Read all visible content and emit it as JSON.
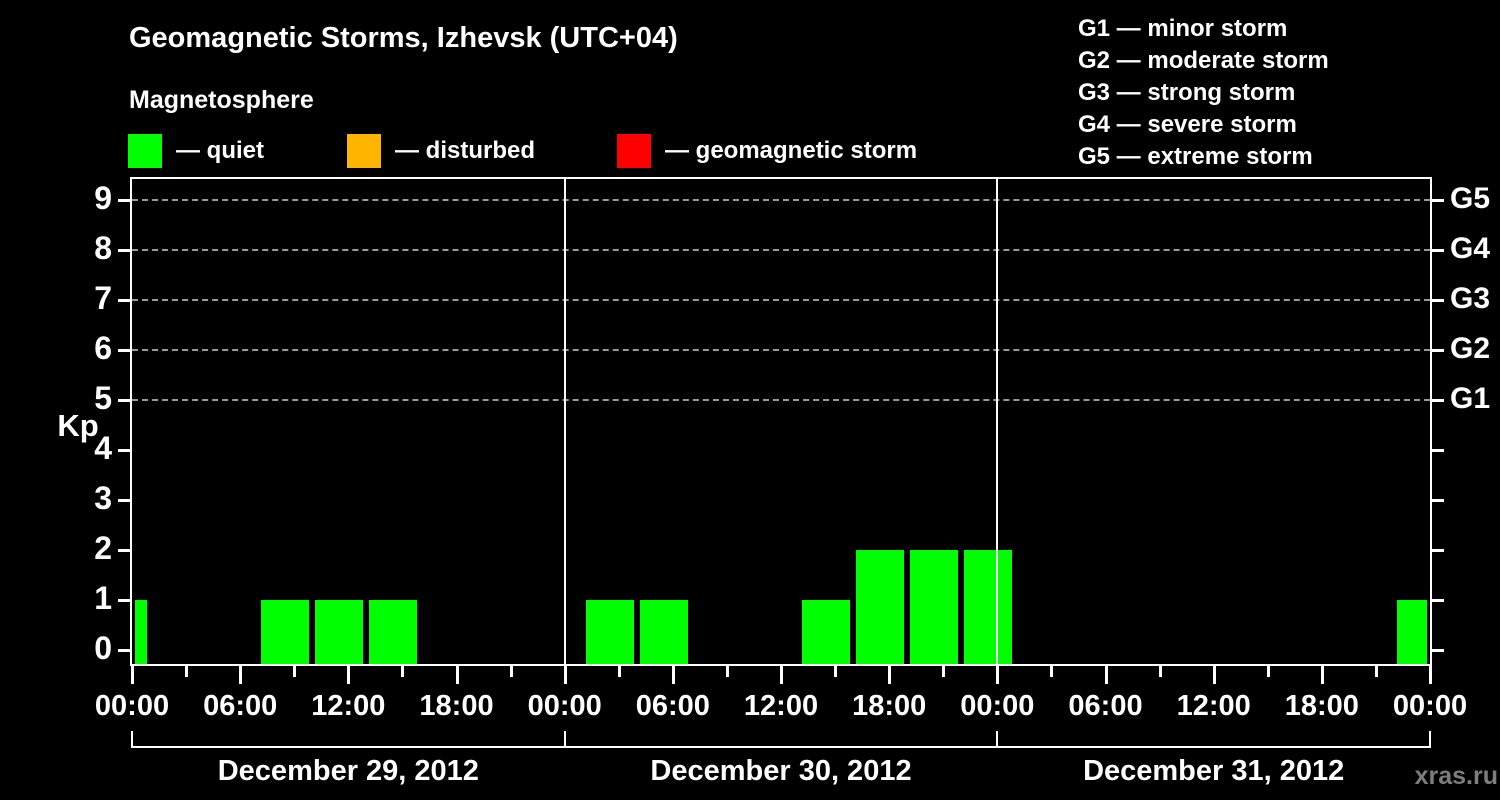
{
  "title": "Geomagnetic Storms, Izhevsk (UTC+04)",
  "subtitle": "Magnetosphere",
  "watermark": "xras.ru",
  "legend": {
    "items": [
      {
        "name": "quiet",
        "label": "— quiet",
        "color": "#00ff00"
      },
      {
        "name": "disturbed",
        "label": "— disturbed",
        "color": "#ffb400"
      },
      {
        "name": "storm",
        "label": "— geomagnetic storm",
        "color": "#ff0000"
      }
    ]
  },
  "g_scale_legend": {
    "items": [
      {
        "code": "G1",
        "label": "G1 — minor storm"
      },
      {
        "code": "G2",
        "label": "G2 — moderate storm"
      },
      {
        "code": "G3",
        "label": "G3 — strong storm"
      },
      {
        "code": "G4",
        "label": "G4 — severe storm"
      },
      {
        "code": "G5",
        "label": "G5 — extreme storm"
      }
    ]
  },
  "chart_data": {
    "type": "bar",
    "title": "Geomagnetic Storms, Izhevsk (UTC+04)",
    "ylabel": "Kp",
    "ylim": [
      0,
      9
    ],
    "y_ticks": [
      0,
      1,
      2,
      3,
      4,
      5,
      6,
      7,
      8,
      9
    ],
    "gridlines_kp": [
      5,
      6,
      7,
      8,
      9
    ],
    "grid": "dashed horizontal at Kp 5-9 only",
    "right_axis_labels": [
      {
        "label": "G5",
        "kp": 9
      },
      {
        "label": "G4",
        "kp": 8
      },
      {
        "label": "G3",
        "kp": 7
      },
      {
        "label": "G2",
        "kp": 6
      },
      {
        "label": "G1",
        "kp": 5
      }
    ],
    "x_hours_total": 72,
    "major_tick_hours": [
      0,
      6,
      12,
      18,
      24,
      30,
      36,
      42,
      48,
      54,
      60,
      66,
      72
    ],
    "minor_tick_hours": [
      3,
      9,
      15,
      21,
      27,
      33,
      39,
      45,
      51,
      57,
      63,
      69
    ],
    "time_labels": [
      {
        "hour": 0,
        "label": "00:00"
      },
      {
        "hour": 6,
        "label": "06:00"
      },
      {
        "hour": 12,
        "label": "12:00"
      },
      {
        "hour": 18,
        "label": "18:00"
      },
      {
        "hour": 24,
        "label": "00:00"
      },
      {
        "hour": 30,
        "label": "06:00"
      },
      {
        "hour": 36,
        "label": "12:00"
      },
      {
        "hour": 42,
        "label": "18:00"
      },
      {
        "hour": 48,
        "label": "00:00"
      },
      {
        "hour": 54,
        "label": "06:00"
      },
      {
        "hour": 60,
        "label": "12:00"
      },
      {
        "hour": 66,
        "label": "18:00"
      },
      {
        "hour": 72,
        "label": "00:00"
      }
    ],
    "days": [
      {
        "label": "December 29, 2012",
        "start_hour": 0,
        "end_hour": 24
      },
      {
        "label": "December 30, 2012",
        "start_hour": 24,
        "end_hour": 48
      },
      {
        "label": "December 31, 2012",
        "start_hour": 48,
        "end_hour": 72
      }
    ],
    "bars": [
      {
        "start_hour": 0,
        "end_hour": 1,
        "kp": 1,
        "status": "quiet"
      },
      {
        "start_hour": 7,
        "end_hour": 10,
        "kp": 1,
        "status": "quiet"
      },
      {
        "start_hour": 10,
        "end_hour": 13,
        "kp": 1,
        "status": "quiet"
      },
      {
        "start_hour": 13,
        "end_hour": 16,
        "kp": 1,
        "status": "quiet"
      },
      {
        "start_hour": 25,
        "end_hour": 28,
        "kp": 1,
        "status": "quiet"
      },
      {
        "start_hour": 28,
        "end_hour": 31,
        "kp": 1,
        "status": "quiet"
      },
      {
        "start_hour": 37,
        "end_hour": 40,
        "kp": 1,
        "status": "quiet"
      },
      {
        "start_hour": 40,
        "end_hour": 43,
        "kp": 2,
        "status": "quiet"
      },
      {
        "start_hour": 43,
        "end_hour": 46,
        "kp": 2,
        "status": "quiet"
      },
      {
        "start_hour": 46,
        "end_hour": 49,
        "kp": 2,
        "status": "quiet"
      },
      {
        "start_hour": 70,
        "end_hour": 72,
        "kp": 1,
        "status": "quiet"
      }
    ],
    "status_colors": {
      "quiet": "#00ff00",
      "disturbed": "#ffb400",
      "storm": "#ff0000"
    }
  },
  "colors": {
    "background": "#000000",
    "axis": "#ffffff",
    "gridline": "#999999",
    "quiet": "#00ff00",
    "disturbed": "#ffb400",
    "storm": "#ff0000",
    "watermark": "#7d7d7d"
  }
}
